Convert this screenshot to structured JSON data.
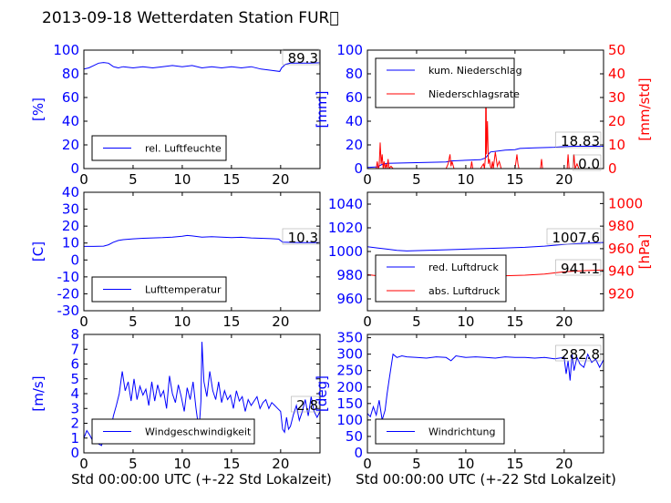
{
  "title": "2013-09-18 Wetterdaten Station FUR\u0000",
  "xlabel_left": "Std 00:00:00 UTC (+-22 Std Lokalzeit)",
  "xlabel_right": "Std 00:00:00 UTC (+-22 Std Lokalzeit)",
  "colors": {
    "blue": "#0000ff",
    "red": "#ff0000",
    "axis": "#000000"
  },
  "chart_data": [
    {
      "id": "humidity",
      "type": "line",
      "xlim": [
        0,
        24
      ],
      "xticks": [
        0,
        5,
        10,
        15,
        20
      ],
      "ylim": [
        0,
        100
      ],
      "yticks": [
        0,
        20,
        40,
        60,
        80,
        100
      ],
      "ylabel": "[%]",
      "legend": {
        "placement": "lower-left",
        "entries": [
          "rel. Luftfeuchte"
        ]
      },
      "annotation": "89.3",
      "series": [
        {
          "name": "rel. Luftfeuchte",
          "color": "#0000ff",
          "axis": "left",
          "x": [
            0,
            0.5,
            1,
            1.5,
            2,
            2.5,
            3,
            3.5,
            4,
            5,
            6,
            7,
            8,
            9,
            10,
            11,
            12,
            13,
            14,
            15,
            16,
            17,
            18,
            19,
            19.9,
            20.1,
            20.5,
            21,
            22,
            23,
            24
          ],
          "y": [
            84,
            85,
            87,
            89,
            89.5,
            89,
            86,
            85,
            86,
            85,
            86,
            85,
            86,
            87,
            86,
            87,
            85,
            86,
            85,
            86,
            85,
            86,
            84,
            83,
            82,
            85,
            88,
            89,
            89,
            89,
            89.3
          ]
        }
      ]
    },
    {
      "id": "rain",
      "type": "line",
      "xlim": [
        0,
        24
      ],
      "xticks": [
        0,
        5,
        10,
        15,
        20
      ],
      "ylim": [
        0,
        100
      ],
      "yticks": [
        0,
        20,
        40,
        60,
        80,
        100
      ],
      "ylim2": [
        0,
        50
      ],
      "yticks2": [
        0,
        10,
        20,
        30,
        40,
        50
      ],
      "ylabel": "[mm]",
      "ylabel2": "[mm/std]",
      "legend": {
        "placement": "upper-left",
        "entries": [
          "kum. Niederschlag",
          "Niederschlagsrate"
        ]
      },
      "annotations": [
        "18.83",
        "0.0"
      ],
      "series": [
        {
          "name": "kum. Niederschlag",
          "color": "#0000ff",
          "axis": "left",
          "x": [
            0,
            1,
            1.5,
            2,
            5,
            8,
            8.5,
            10,
            11.5,
            12,
            12.5,
            14,
            15,
            15.5,
            17,
            19,
            20,
            21,
            24
          ],
          "y": [
            1,
            1.5,
            3.5,
            4.5,
            5,
            5.5,
            6.5,
            7,
            7.5,
            9,
            14,
            15.5,
            16,
            17,
            17.5,
            18,
            18.5,
            18.83,
            18.83
          ]
        },
        {
          "name": "Niederschlagsrate",
          "color": "#ff0000",
          "axis": "right",
          "x": [
            0,
            0.9,
            1.0,
            1.1,
            1.2,
            1.3,
            1.4,
            1.5,
            1.6,
            1.7,
            1.8,
            1.9,
            2.0,
            2.1,
            2.2,
            2.4,
            2.6,
            3.0,
            4.0,
            5.0,
            6.0,
            8.0,
            8.2,
            8.4,
            8.5,
            8.6,
            8.8,
            9.0,
            10.0,
            10.5,
            10.6,
            10.7,
            11.0,
            11.5,
            11.8,
            11.9,
            12.0,
            12.05,
            12.1,
            12.2,
            12.3,
            12.4,
            12.5,
            12.6,
            12.7,
            12.8,
            13.0,
            13.2,
            13.4,
            13.6,
            14.0,
            15.0,
            15.1,
            15.2,
            15.3,
            15.4,
            15.6,
            17.0,
            17.6,
            17.7,
            17.8,
            18.0,
            19.0,
            20.0,
            20.3,
            20.4,
            20.5,
            20.7,
            20.9,
            21.0,
            21.1,
            21.3,
            21.5,
            24.0
          ],
          "y": [
            0,
            0,
            3,
            0,
            1,
            11,
            2,
            6,
            0,
            3,
            0,
            2,
            0,
            4,
            0,
            1,
            0,
            0,
            0,
            0,
            0,
            0,
            2,
            6,
            1,
            3,
            0,
            0,
            0,
            0,
            3,
            0,
            0,
            0,
            2,
            0,
            5,
            46,
            6,
            20,
            2,
            4,
            1,
            0,
            3,
            0,
            7,
            1,
            3,
            0,
            0,
            0,
            3,
            6,
            2,
            0,
            0,
            0,
            0,
            4,
            0,
            0,
            0,
            0,
            0,
            6,
            0,
            0,
            0,
            6,
            0,
            2,
            0,
            0
          ]
        }
      ]
    },
    {
      "id": "temperature",
      "type": "line",
      "xlim": [
        0,
        24
      ],
      "xticks": [
        0,
        5,
        10,
        15,
        20
      ],
      "ylim": [
        -30,
        40
      ],
      "yticks": [
        -30,
        -20,
        -10,
        0,
        10,
        20,
        30,
        40
      ],
      "ylabel": "[C]",
      "legend": {
        "placement": "lower-left",
        "entries": [
          "Lufttemperatur"
        ]
      },
      "annotation": "10.3",
      "series": [
        {
          "name": "Lufttemperatur",
          "color": "#0000ff",
          "axis": "left",
          "x": [
            0,
            1,
            2,
            2.5,
            3,
            3.5,
            4,
            5,
            6,
            7,
            8,
            9,
            10,
            10.5,
            11,
            12,
            13,
            14,
            15,
            16,
            17,
            18,
            19,
            19.8,
            20.2,
            21,
            22,
            23,
            24
          ],
          "y": [
            8,
            8,
            8.2,
            9,
            10.5,
            11.5,
            12,
            12.5,
            12.8,
            13,
            13.2,
            13.5,
            14,
            14.5,
            14.2,
            13.5,
            13.8,
            13.5,
            13.2,
            13.4,
            13,
            12.8,
            12.6,
            12.3,
            10.5,
            10.4,
            10.3,
            10.3,
            10.3
          ]
        }
      ]
    },
    {
      "id": "pressure",
      "type": "line",
      "xlim": [
        0,
        24
      ],
      "xticks": [
        0,
        5,
        10,
        15,
        20
      ],
      "ylim": [
        950,
        1050
      ],
      "yticks": [
        960,
        980,
        1000,
        1020,
        1040
      ],
      "ylim2": [
        905,
        1010
      ],
      "yticks2": [
        920,
        940,
        960,
        980,
        1000
      ],
      "ylabel": "",
      "ylabel2": "[hPa]",
      "legend": {
        "placement": "lower-left",
        "entries": [
          "red. Luftdruck",
          "abs. Luftdruck"
        ]
      },
      "annotations": [
        "1007.6",
        "941.1"
      ],
      "series": [
        {
          "name": "red. Luftdruck",
          "color": "#0000ff",
          "axis": "left",
          "x": [
            0,
            1,
            2,
            3,
            4,
            6,
            8,
            10,
            12,
            14,
            16,
            18,
            20,
            22,
            24
          ],
          "y": [
            1004,
            1003,
            1002,
            1001,
            1000.5,
            1001,
            1001.5,
            1002,
            1002.5,
            1003,
            1003.5,
            1004.5,
            1006,
            1007,
            1007.6
          ]
        },
        {
          "name": "abs. Luftdruck",
          "color": "#ff0000",
          "axis": "right",
          "x": [
            0,
            1,
            2,
            3,
            4,
            6,
            8,
            10,
            12,
            14,
            16,
            18,
            20,
            22,
            24
          ],
          "y": [
            937,
            936,
            935.5,
            934.5,
            934,
            934.2,
            934.5,
            935,
            935.5,
            936,
            936.5,
            937.5,
            939.5,
            940.5,
            941.1
          ]
        }
      ]
    },
    {
      "id": "windspeed",
      "type": "line",
      "xlim": [
        0,
        24
      ],
      "xticks": [
        0,
        5,
        10,
        15,
        20
      ],
      "ylim": [
        0,
        8
      ],
      "yticks": [
        0,
        1,
        2,
        3,
        4,
        5,
        6,
        7,
        8
      ],
      "ylabel": "[m/s]",
      "legend": {
        "placement": "lower-left",
        "entries": [
          "Windgeschwindigkeit"
        ]
      },
      "annotation": "2.8",
      "series": [
        {
          "name": "Windgeschwindigkeit",
          "color": "#0000ff",
          "axis": "left",
          "x": [
            0,
            0.3,
            0.6,
            0.9,
            1.2,
            1.5,
            1.8,
            2.1,
            2.4,
            2.7,
            3.0,
            3.3,
            3.6,
            3.9,
            4.2,
            4.5,
            4.8,
            5.1,
            5.4,
            5.7,
            6.0,
            6.3,
            6.6,
            6.9,
            7.2,
            7.5,
            7.8,
            8.1,
            8.4,
            8.7,
            9.0,
            9.3,
            9.6,
            9.9,
            10.2,
            10.5,
            10.8,
            11.1,
            11.4,
            11.7,
            11.9,
            12.0,
            12.2,
            12.5,
            12.8,
            13.1,
            13.4,
            13.7,
            14.0,
            14.3,
            14.6,
            14.9,
            15.2,
            15.5,
            15.8,
            16.1,
            16.4,
            16.7,
            17.0,
            17.3,
            17.6,
            17.9,
            18.2,
            18.5,
            18.8,
            19.1,
            19.4,
            19.7,
            20.0,
            20.2,
            20.4,
            20.6,
            20.8,
            21.0,
            21.3,
            21.6,
            21.9,
            22.2,
            22.5,
            22.8,
            23.1,
            23.4,
            23.7,
            24.0
          ],
          "y": [
            1.0,
            1.5,
            1.2,
            0.8,
            1.4,
            0.6,
            0.5,
            1.2,
            2.0,
            1.5,
            2.5,
            3.2,
            4.0,
            5.5,
            4.2,
            4.8,
            3.5,
            5.0,
            3.6,
            4.5,
            3.9,
            4.3,
            3.2,
            4.8,
            3.5,
            4.6,
            3.8,
            4.2,
            3.0,
            5.2,
            4.0,
            3.4,
            4.6,
            3.8,
            2.8,
            4.4,
            3.6,
            4.8,
            3.0,
            1.5,
            3.5,
            7.5,
            4.8,
            3.8,
            5.5,
            4.2,
            3.6,
            4.8,
            3.4,
            4.2,
            3.6,
            3.9,
            3.0,
            4.2,
            3.5,
            3.8,
            2.8,
            3.6,
            3.2,
            3.5,
            3.8,
            3.0,
            3.4,
            3.6,
            3.0,
            3.4,
            3.2,
            3.0,
            2.8,
            1.6,
            1.4,
            2.4,
            1.6,
            1.8,
            2.6,
            3.2,
            2.2,
            2.8,
            3.6,
            2.5,
            3.8,
            2.8,
            2.4,
            2.8
          ]
        }
      ]
    },
    {
      "id": "winddirection",
      "type": "line",
      "xlim": [
        0,
        24
      ],
      "xticks": [
        0,
        5,
        10,
        15,
        20
      ],
      "ylim": [
        0,
        360
      ],
      "yticks": [
        0,
        50,
        100,
        150,
        200,
        250,
        300,
        350
      ],
      "ylabel": "[deg]",
      "legend": {
        "placement": "lower-left",
        "entries": [
          "Windrichtung"
        ]
      },
      "annotation": "282.8",
      "series": [
        {
          "name": "Windrichtung",
          "color": "#0000ff",
          "axis": "left",
          "x": [
            0,
            0.3,
            0.6,
            0.9,
            1.2,
            1.5,
            1.8,
            2.0,
            2.2,
            2.4,
            2.6,
            3.0,
            3.5,
            4.0,
            5.0,
            6.0,
            7.0,
            8.0,
            8.5,
            9.0,
            10.0,
            11.0,
            12.0,
            13.0,
            14.0,
            15.0,
            16.0,
            17.0,
            18.0,
            19.0,
            20.0,
            20.2,
            20.4,
            20.6,
            20.8,
            21.0,
            21.3,
            21.6,
            22.0,
            22.4,
            22.8,
            23.2,
            23.6,
            24.0
          ],
          "y": [
            120,
            110,
            140,
            115,
            160,
            100,
            130,
            180,
            220,
            260,
            300,
            290,
            295,
            292,
            290,
            288,
            292,
            290,
            280,
            295,
            290,
            292,
            290,
            288,
            292,
            290,
            290,
            288,
            290,
            286,
            290,
            240,
            280,
            220,
            300,
            250,
            290,
            270,
            260,
            300,
            275,
            285,
            260,
            283
          ]
        }
      ]
    }
  ]
}
